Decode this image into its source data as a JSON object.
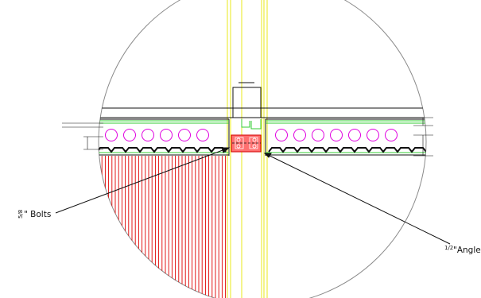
{
  "callouts": {
    "bolts_fraction": "5/8",
    "bolts_text": "\" Bolts",
    "angle_fraction": "1/2",
    "angle_text": "\"Angle"
  },
  "colors": {
    "circle_outline": "#8a8a8a",
    "slab_lines": "#111111",
    "reinforcement": "#33cc33",
    "column_lines": "#e6e600",
    "hollow_cores": "#e000e0",
    "hatch": "#e00000",
    "angle_fill": "#ff5050",
    "leader": "#111111"
  },
  "icons": {
    "hollow_cores_left_count": 6,
    "hollow_cores_right_count": 7
  }
}
